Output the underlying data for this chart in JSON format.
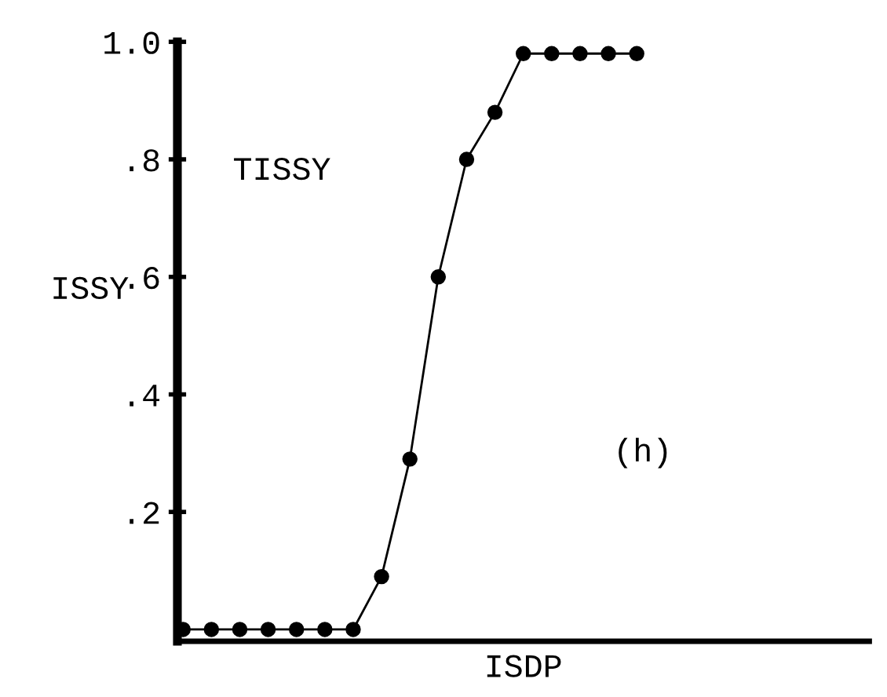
{
  "chart_data": {
    "type": "line",
    "xlabel": "ISDP",
    "ylabel": "ISSY",
    "annotations": [
      "TISSY",
      "(h)"
    ],
    "categories": [
      null,
      null,
      null,
      null,
      null,
      null,
      null,
      null,
      null,
      null,
      null,
      null,
      null,
      null,
      null,
      null,
      null,
      null,
      null,
      null,
      null,
      null,
      null,
      null,
      null
    ],
    "series": [
      {
        "color": "#000000",
        "values": [
          0,
          0,
          0,
          0,
          0,
          0,
          0,
          0.09,
          0.29,
          0.6,
          0.8,
          0.88,
          0.98,
          0.98,
          0.98,
          0.98,
          0.98,
          null,
          null,
          null,
          null,
          null,
          null,
          null,
          null
        ]
      }
    ],
    "ylim": [
      -0.02,
      1.0
    ],
    "yticks": [
      {
        "value": 0.2,
        "label": ".2"
      },
      {
        "value": 0.4,
        "label": ".4"
      },
      {
        "value": 0.6,
        "label": ".6"
      },
      {
        "value": 0.8,
        "label": ".8"
      },
      {
        "value": 1.0,
        "label": "1.0"
      }
    ],
    "marker": "circle",
    "line_style": "solid"
  }
}
